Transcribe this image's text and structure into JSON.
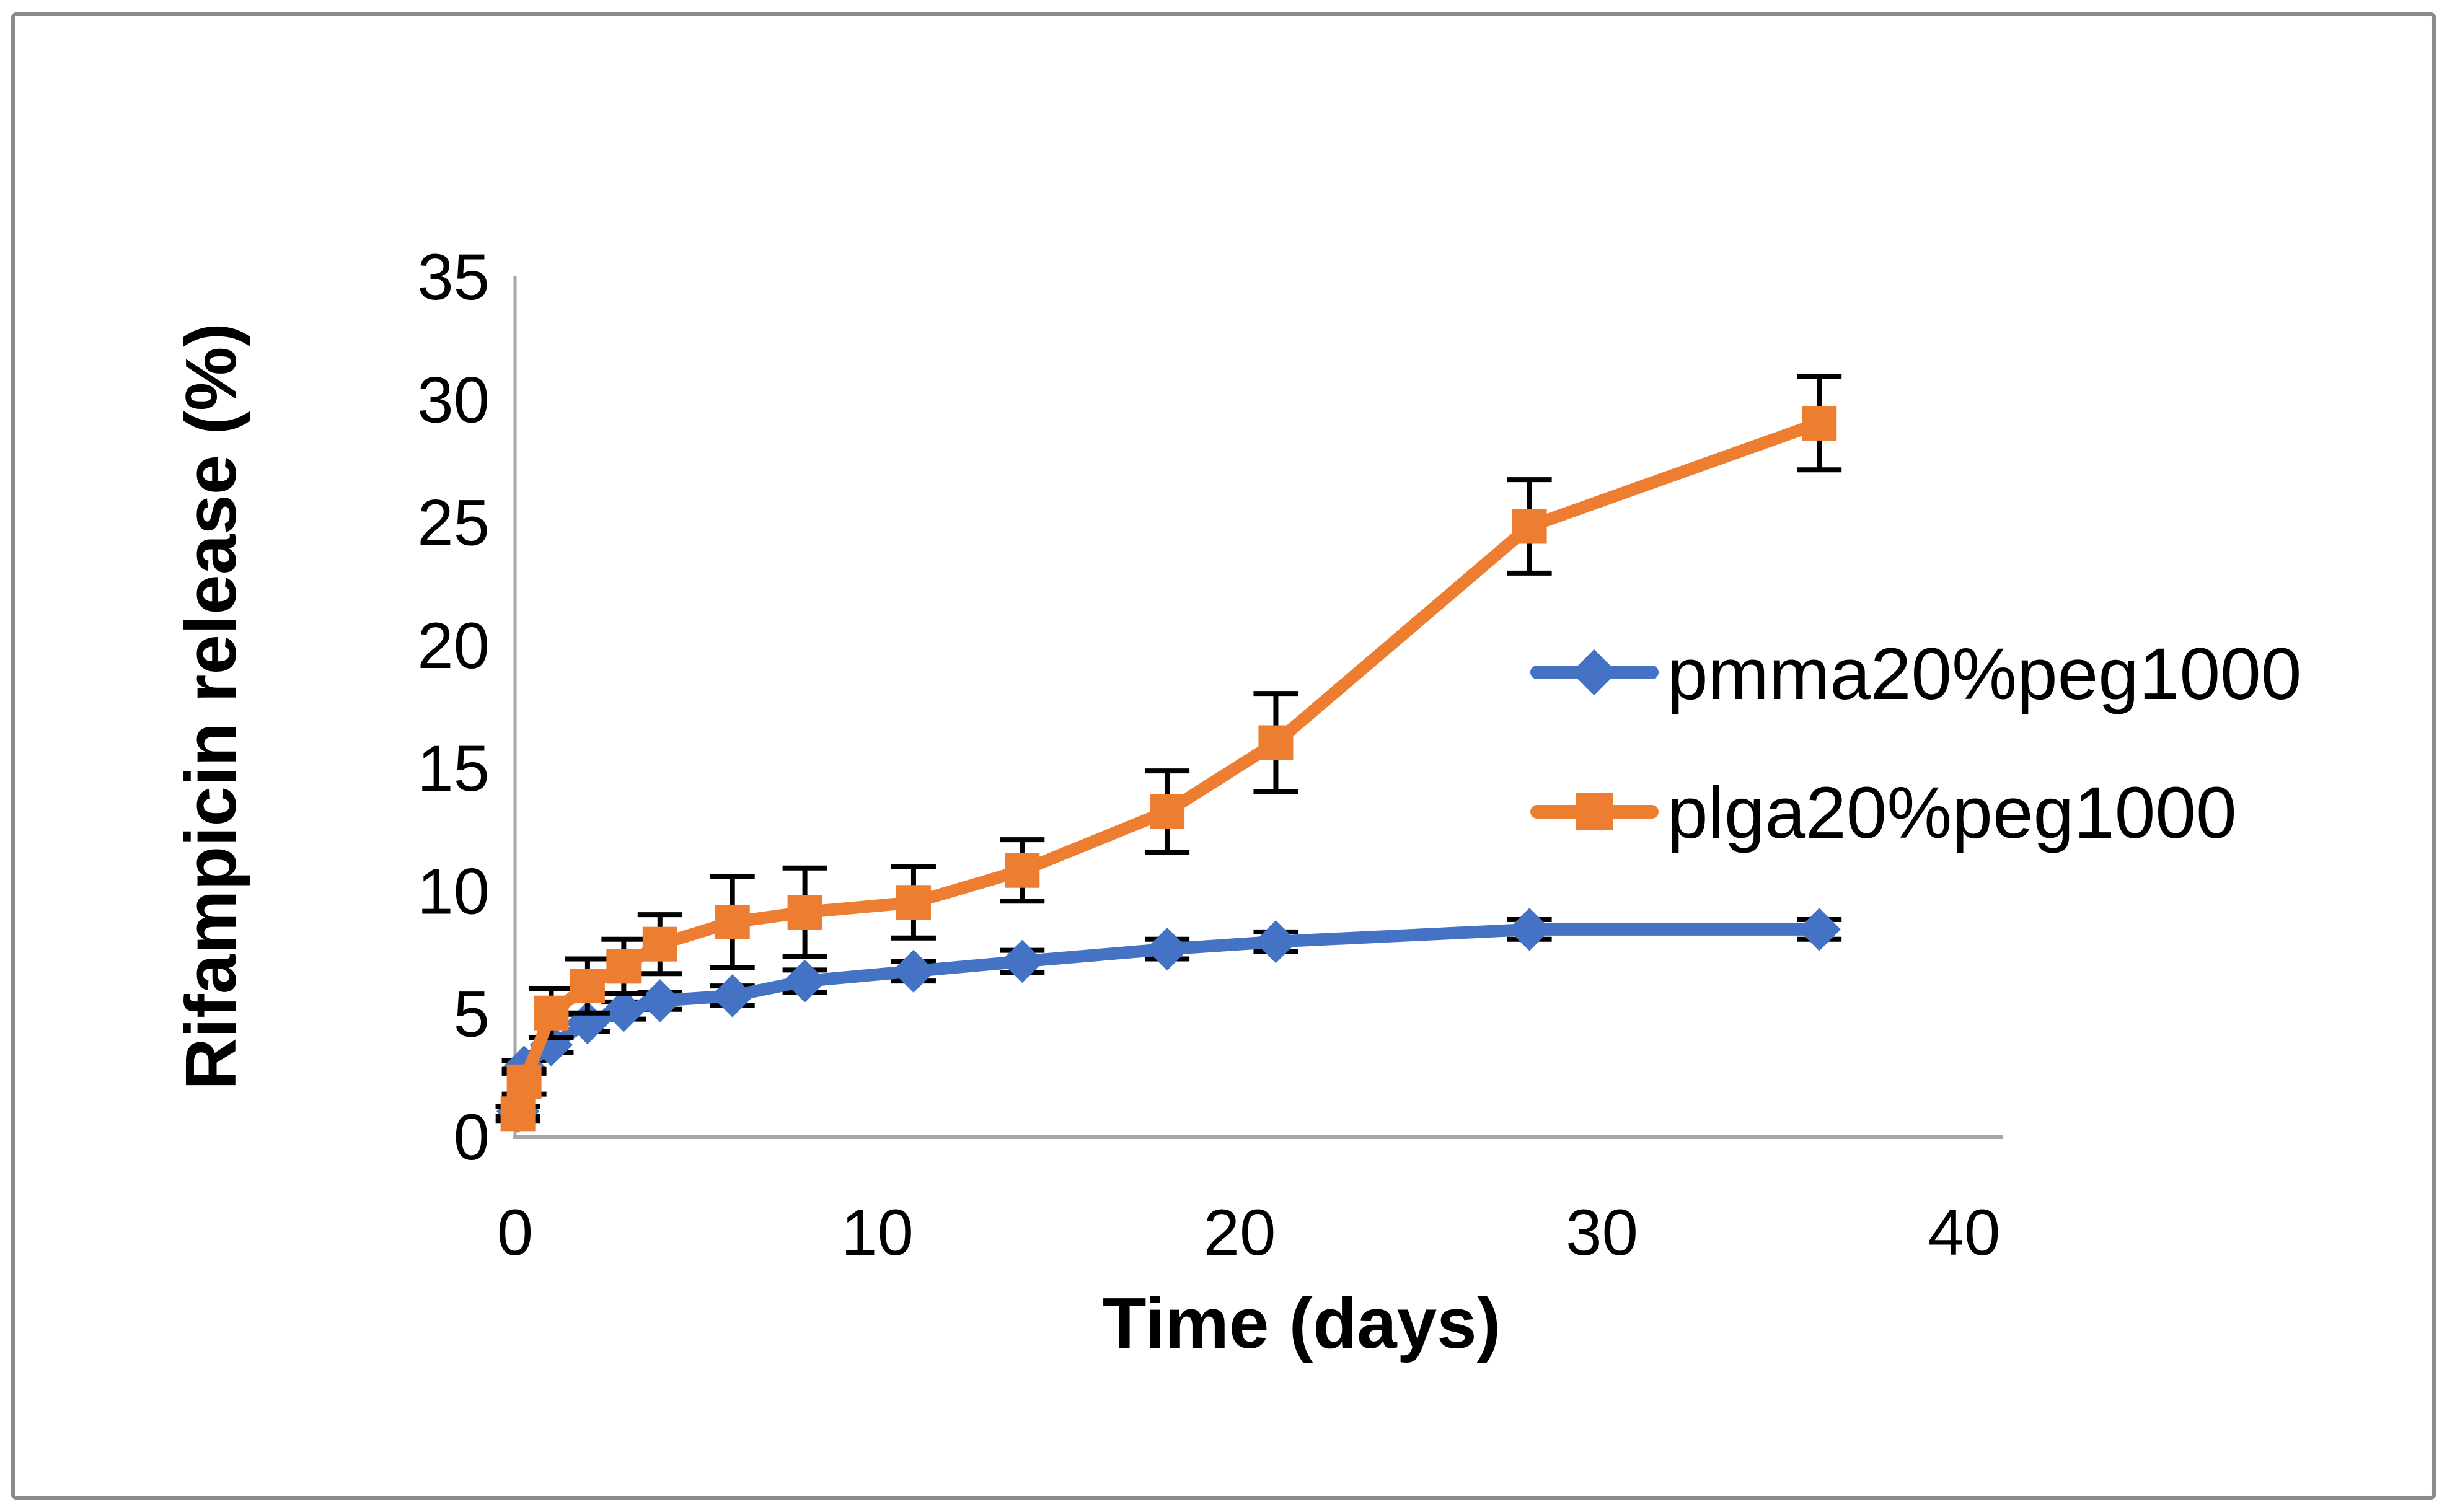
{
  "figure": {
    "background_color": "#ffffff",
    "border_color": "#8a8a8a",
    "axis_line_color": "#a6a6a6",
    "error_bar_color": "#000000",
    "text_color": "#000000"
  },
  "chart_data": {
    "type": "line",
    "title": "",
    "xlabel": "Time (days)",
    "ylabel": "Rifampicin release (%)",
    "xlim": [
      0,
      41
    ],
    "ylim": [
      0,
      35
    ],
    "x_ticks": [
      0,
      10,
      20,
      30,
      40
    ],
    "y_ticks": [
      0,
      5,
      10,
      15,
      20,
      25,
      30,
      35
    ],
    "grid": false,
    "legend_position": "right-middle",
    "error_bars": true,
    "x": [
      0.08,
      0.25,
      1,
      2,
      3,
      4,
      6,
      8,
      11,
      14,
      18,
      21,
      28,
      36
    ],
    "series": [
      {
        "name": "pmma20%peg1000",
        "color": "#4472C4",
        "marker": "diamond",
        "values": [
          1.0,
          2.8,
          3.7,
          4.6,
          5.1,
          5.5,
          5.7,
          6.3,
          6.7,
          7.1,
          7.6,
          7.9,
          8.4,
          8.4
        ],
        "errors": [
          0.2,
          0.25,
          0.3,
          0.35,
          0.35,
          0.35,
          0.4,
          0.45,
          0.4,
          0.45,
          0.4,
          0.4,
          0.4,
          0.4
        ]
      },
      {
        "name": "plga20%peg1000",
        "color": "#ED7D31",
        "marker": "square",
        "values": [
          0.9,
          2.2,
          5.0,
          6.1,
          6.9,
          7.8,
          8.7,
          9.1,
          9.5,
          10.8,
          13.2,
          16.0,
          24.8,
          29.0
        ],
        "errors": [
          0.3,
          0.5,
          1.0,
          1.1,
          1.1,
          1.2,
          1.85,
          1.8,
          1.45,
          1.25,
          1.65,
          2.0,
          1.9,
          1.9
        ]
      }
    ]
  }
}
